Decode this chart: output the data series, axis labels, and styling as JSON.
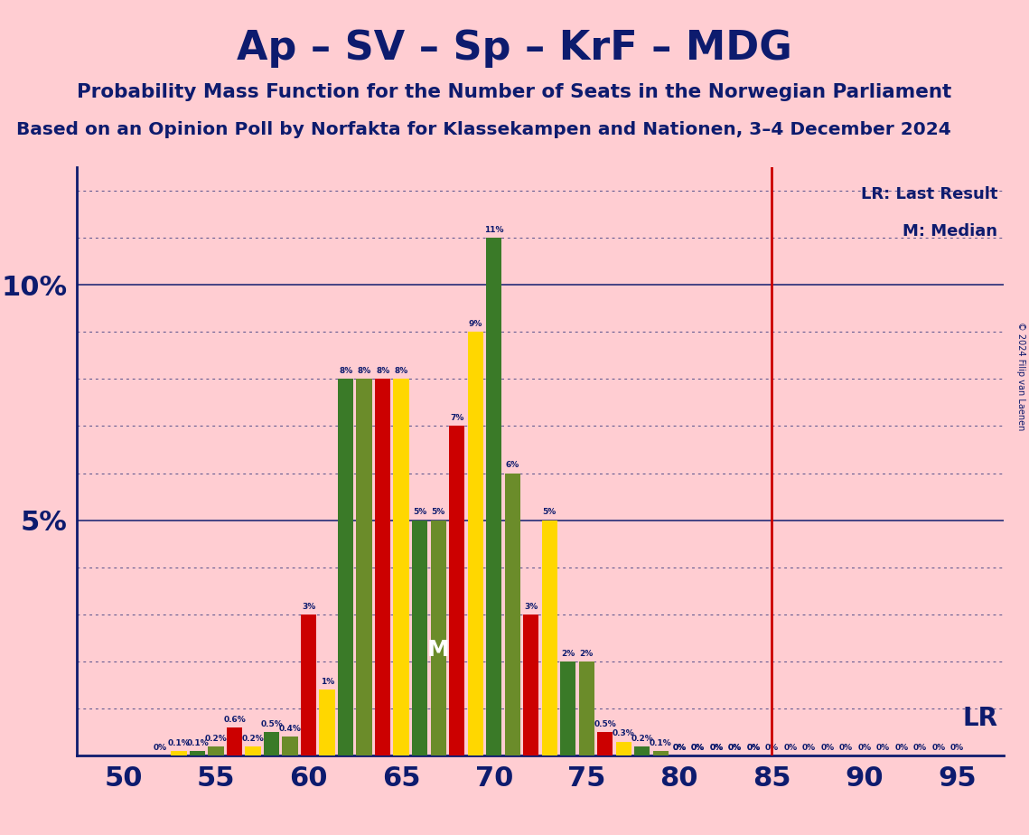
{
  "title": "Ap – SV – Sp – KrF – MDG",
  "subtitle": "Probability Mass Function for the Number of Seats in the Norwegian Parliament",
  "source_line": "Based on an Opinion Poll by Norfakta for Klassekampen and Nationen, 3–4 December 2024",
  "copyright": "© 2024 Filip van Laenen",
  "lr_label": "LR: Last Result",
  "median_label": "M: Median",
  "lr_line_label": "LR",
  "median_marker": "M",
  "lr_seat": 85,
  "median_seat": 67,
  "background_color": "#FFCDD2",
  "title_color": "#0D1B6E",
  "lr_line_color": "#CC0000",
  "grid_color": "#0D1B6E",
  "seats": [
    52,
    53,
    54,
    55,
    56,
    57,
    58,
    59,
    60,
    61,
    62,
    63,
    64,
    65,
    66,
    67,
    68,
    69,
    70,
    71,
    72,
    73,
    74,
    75,
    76,
    77,
    78,
    79,
    80,
    81,
    82,
    83,
    84,
    85,
    86,
    87,
    88,
    89,
    90,
    91,
    92,
    93,
    94,
    95
  ],
  "probabilities": [
    0.0,
    0.1,
    0.1,
    0.2,
    0.6,
    0.2,
    0.5,
    0.4,
    3.0,
    1.4,
    8.0,
    8.0,
    8.0,
    8.0,
    5.0,
    5.0,
    7.0,
    9.0,
    11.0,
    6.0,
    3.0,
    5.0,
    2.0,
    2.0,
    0.5,
    0.3,
    0.2,
    0.1,
    0.0,
    0.0,
    0.0,
    0.0,
    0.0,
    0.0,
    0.0,
    0.0,
    0.0,
    0.0,
    0.0,
    0.0,
    0.0,
    0.0,
    0.0,
    0.0
  ],
  "color_map": {
    "0": "#CC0000",
    "1": "#FFD700",
    "2": "#3A7A28",
    "3": "#6B8C2A"
  },
  "ylim": [
    0,
    12.5
  ],
  "xticks": [
    50,
    55,
    60,
    65,
    70,
    75,
    80,
    85,
    90,
    95
  ],
  "xlim": [
    47.5,
    97.5
  ]
}
